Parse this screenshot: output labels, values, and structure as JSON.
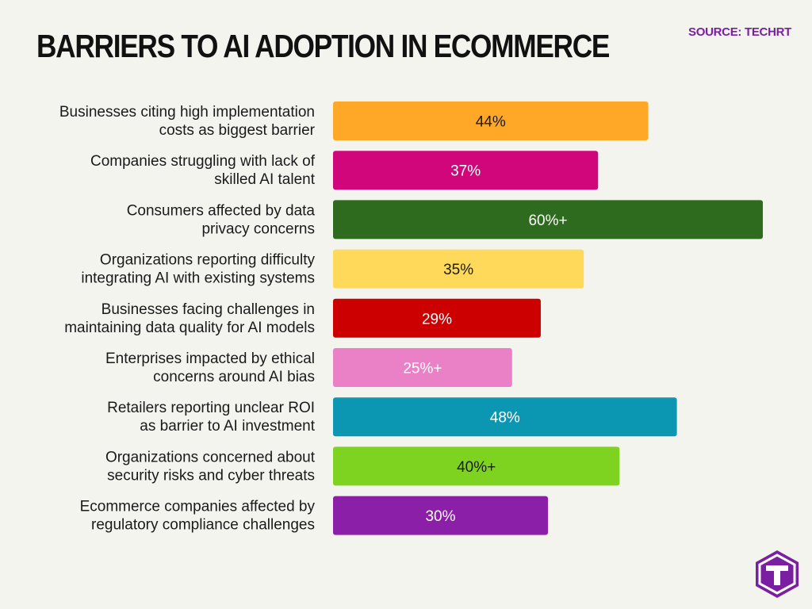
{
  "header": {
    "title": "BARRIERS TO AI ADOPTION IN ECOMMERCE",
    "source": "SOURCE: TECHRT"
  },
  "chart_data": {
    "type": "bar",
    "orientation": "horizontal",
    "title": "BARRIERS TO AI ADOPTION IN ECOMMERCE",
    "xlabel": "",
    "ylabel": "",
    "xlim": [
      0,
      60
    ],
    "grid": false,
    "legend": "none",
    "categories": [
      [
        "Businesses citing high implementation",
        "costs as biggest barrier"
      ],
      [
        "Companies struggling with lack of",
        "skilled AI talent"
      ],
      [
        "Consumers affected by data",
        "privacy concerns"
      ],
      [
        "Organizations reporting difficulty",
        "integrating AI with existing systems"
      ],
      [
        "Businesses facing challenges in",
        "maintaining data quality for AI models"
      ],
      [
        "Enterprises impacted by ethical",
        "concerns around AI bias"
      ],
      [
        "Retailers reporting unclear ROI",
        "as barrier to AI investment"
      ],
      [
        "Organizations concerned about",
        "security risks and cyber threats"
      ],
      [
        "Ecommerce companies affected by",
        "regulatory compliance challenges"
      ]
    ],
    "values": [
      44,
      37,
      60,
      35,
      29,
      25,
      48,
      40,
      30
    ],
    "value_labels": [
      "44%",
      "37%",
      "60%+",
      "35%",
      "29%",
      "25%+",
      "48%",
      "40%+",
      "30%"
    ],
    "colors": [
      "#ffa726",
      "#d0067a",
      "#2e6b1f",
      "#ffd95a",
      "#cc0000",
      "#ea80c6",
      "#0b96b1",
      "#7ed321",
      "#8c1fa8"
    ],
    "label_colors": [
      "#1a1a1a",
      "#ffffff",
      "#ffffff",
      "#1a1a1a",
      "#ffffff",
      "#ffffff",
      "#ffffff",
      "#1a1a1a",
      "#ffffff"
    ]
  },
  "logo": {
    "icon": "techrt-hexagon-logo-icon",
    "color": "#7a1fa2"
  }
}
